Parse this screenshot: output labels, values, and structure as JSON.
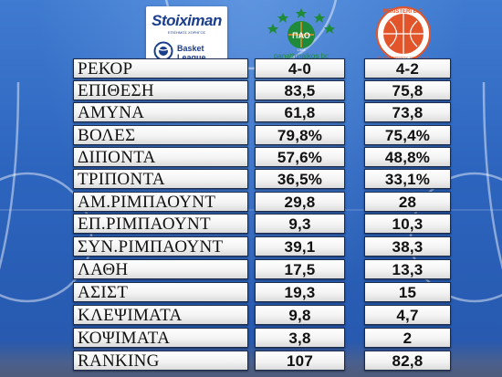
{
  "sponsor": {
    "brand": "Stoiximan",
    "brand_sub": "ΕΠΙΣΗΜΟΣ ΧΟΡΗΓΟΣ",
    "league_line1": "Basket",
    "league_line2": "League",
    "icon": "basket-league-icon"
  },
  "teams": [
    {
      "logo_icon": "panathinaikos-logo-icon",
      "logo_text": "panathinaikos bc",
      "logo_year": "1908",
      "accent": "#1e8a3a"
    },
    {
      "logo_icon": "peristeri-logo-icon",
      "logo_text": "PERISTERI B.C.",
      "logo_sub": "ΓΣ ΠΕΡΙΣΤΕΡΙΟΥ 1971 Κ.Α.Ε.",
      "accent": "#e2542a"
    }
  ],
  "stats": [
    {
      "label": "ΡΕΚΟΡ",
      "team1": "4-0",
      "team2": "4-2"
    },
    {
      "label": "ΕΠΙΘΕΣΗ",
      "team1": "83,5",
      "team2": "75,8"
    },
    {
      "label": "ΑΜΥΝΑ",
      "team1": "61,8",
      "team2": "73,8"
    },
    {
      "label": "ΒΟΛΕΣ",
      "team1": "79,8%",
      "team2": "75,4%"
    },
    {
      "label": "ΔΙΠΟΝΤΑ",
      "team1": "57,6%",
      "team2": "48,8%"
    },
    {
      "label": "ΤΡΙΠΟΝΤΑ",
      "team1": "36,5%",
      "team2": "33,1%"
    },
    {
      "label": "ΑΜ.ΡΙΜΠΑΟΥΝΤ",
      "team1": "29,8",
      "team2": "28"
    },
    {
      "label": "ΕΠ.ΡΙΜΠΑΟΥΝΤ",
      "team1": "9,3",
      "team2": "10,3"
    },
    {
      "label": "ΣΥΝ.ΡΙΜΠΑΟΥΝΤ",
      "team1": "39,1",
      "team2": "38,3"
    },
    {
      "label": "ΛΑΘΗ",
      "team1": "17,5",
      "team2": "13,3"
    },
    {
      "label": "ΑΣΙΣΤ",
      "team1": "19,3",
      "team2": "15"
    },
    {
      "label": "ΚΛΕΨΙΜΑΤΑ",
      "team1": "9,8",
      "team2": "4,7"
    },
    {
      "label": "ΚΟΨΙΜΑΤΑ",
      "team1": "3,8",
      "team2": "2"
    },
    {
      "label": "RANKING",
      "team1": "107",
      "team2": "82,8"
    }
  ]
}
